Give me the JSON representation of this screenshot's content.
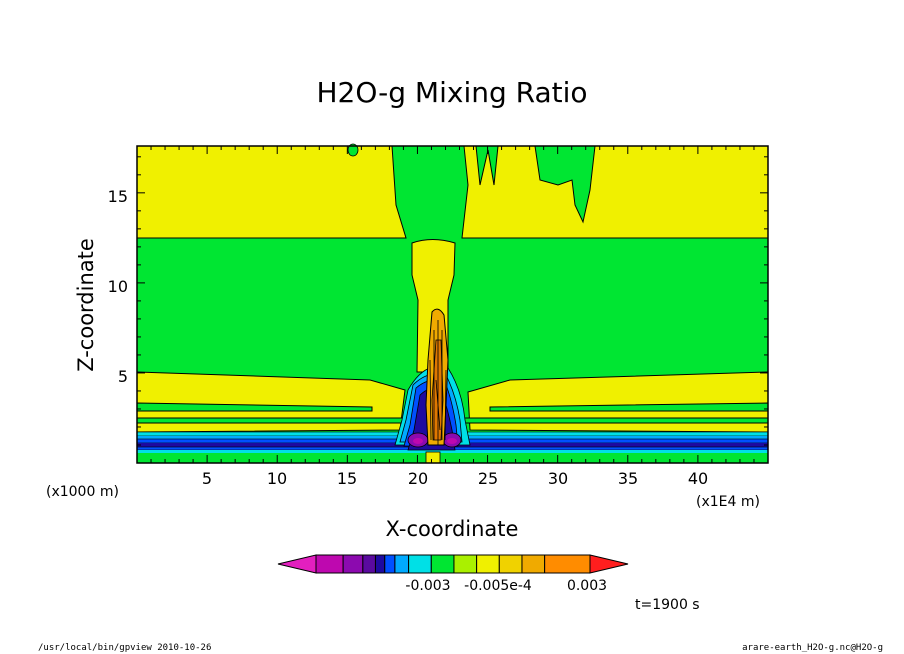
{
  "chart_data": {
    "type": "heatmap",
    "title": "H2O-g Mixing Ratio",
    "xlabel": "X-coordinate",
    "ylabel": "Z-coordinate",
    "x_unit_left": "(x1000 m)",
    "x_unit_right": "(x1E4 m)",
    "xlim": [
      0,
      45
    ],
    "ylim": [
      0,
      17.6
    ],
    "x_ticks": [
      "5",
      "10",
      "15",
      "20",
      "25",
      "30",
      "35",
      "40"
    ],
    "x_tick_values": [
      5,
      10,
      15,
      20,
      25,
      30,
      35,
      40
    ],
    "y_ticks": [
      "5",
      "10",
      "15"
    ],
    "y_tick_values": [
      5,
      10,
      15
    ],
    "colorbar": {
      "labels": [
        "-0.003",
        "-0.005e-4",
        "0.003"
      ],
      "colors": [
        "#e31fbf",
        "#be08af",
        "#8c0aaf",
        "#5a0a9f",
        "#1e0aa0",
        "#0050ff",
        "#00aaff",
        "#00e0e6",
        "#00e632",
        "#aaf000",
        "#f0f000",
        "#f0d200",
        "#f0aa00",
        "#ff8c00",
        "#ff1e1e"
      ],
      "color_fractions": [
        0.099,
        0.171,
        0.217,
        0.251,
        0.288,
        0.338
      ]
    },
    "time_label": "t=1900 s"
  },
  "footer": {
    "left": "/usr/local/bin/gpview  2010-10-26",
    "right": "arare-earth_H2O-g.nc@H2O-g"
  },
  "colors": {
    "background_green": "#00e632",
    "yellow": "#f0f000",
    "orange": "#f0aa00",
    "dark_orange": "#e07800",
    "cyan": "#00e0e6",
    "light_blue": "#00aaff",
    "blue": "#0050ff",
    "dark_blue": "#1e0aa0",
    "violet": "#5a0a9f",
    "purple": "#8c0aaf",
    "magenta": "#be08af"
  }
}
